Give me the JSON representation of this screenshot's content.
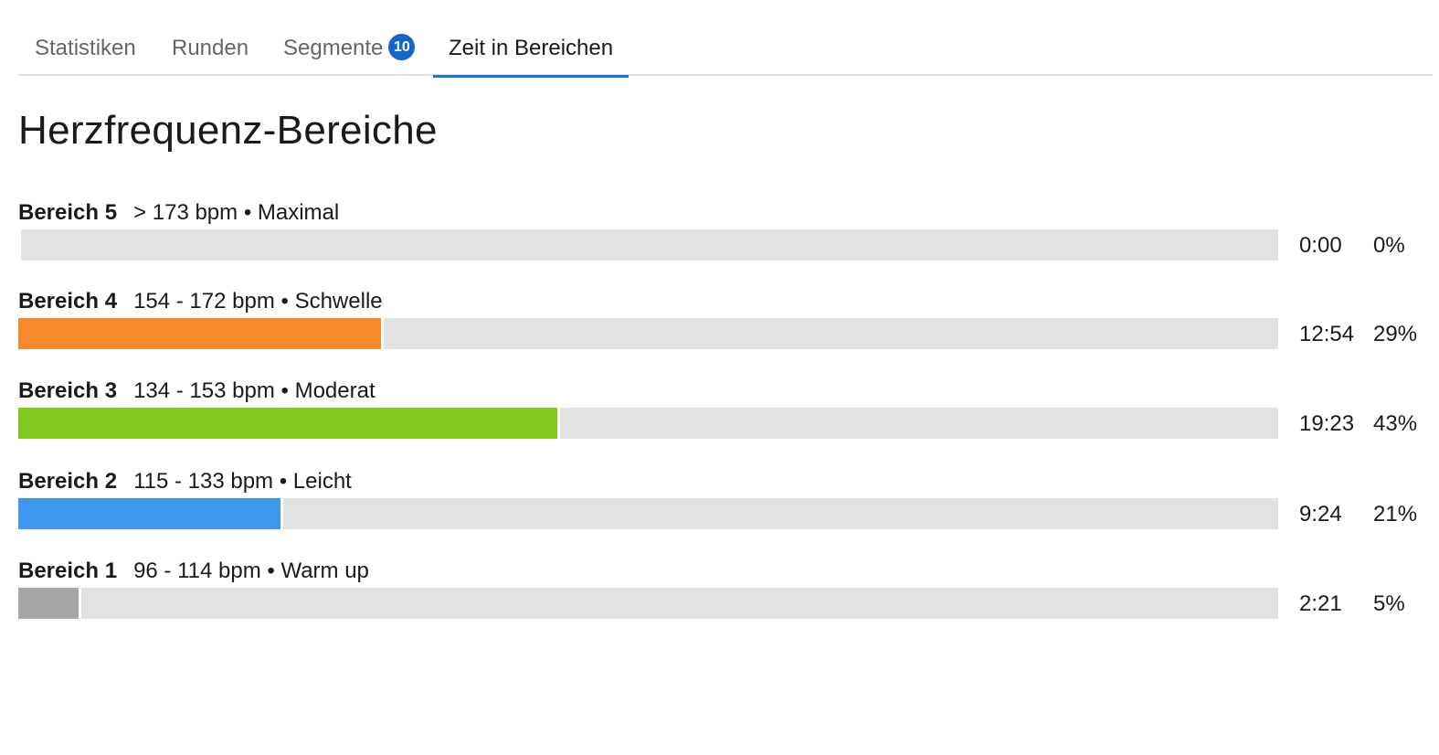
{
  "tabs": [
    {
      "label": "Statistiken"
    },
    {
      "label": "Runden"
    },
    {
      "label": "Segmente",
      "badge": "10"
    },
    {
      "label": "Zeit in Bereichen",
      "active": true
    }
  ],
  "title": "Herzfrequenz-Bereiche",
  "zones": [
    {
      "name": "Bereich 5",
      "range": "> 173 bpm • Maximal",
      "time": "0:00",
      "percent_label": "0%",
      "percent": 0,
      "color": "#f7892a"
    },
    {
      "name": "Bereich 4",
      "range": "154 - 172 bpm • Schwelle",
      "time": "12:54",
      "percent_label": "29%",
      "percent": 29,
      "color": "#f7892a"
    },
    {
      "name": "Bereich 3",
      "range": "134 - 153 bpm • Moderat",
      "time": "19:23",
      "percent_label": "43%",
      "percent": 43,
      "color": "#82c91e"
    },
    {
      "name": "Bereich 2",
      "range": "115 - 133 bpm • Leicht",
      "time": "9:24",
      "percent_label": "21%",
      "percent": 21,
      "color": "#3d97ef"
    },
    {
      "name": "Bereich 1",
      "range": "96 - 114 bpm • Warm up",
      "time": "2:21",
      "percent_label": "5%",
      "percent": 5,
      "color": "#a6a6a6"
    }
  ],
  "colors": {
    "track": "#e2e2e2",
    "tab_active_underline": "#1877d2",
    "badge": "#1466c7"
  }
}
